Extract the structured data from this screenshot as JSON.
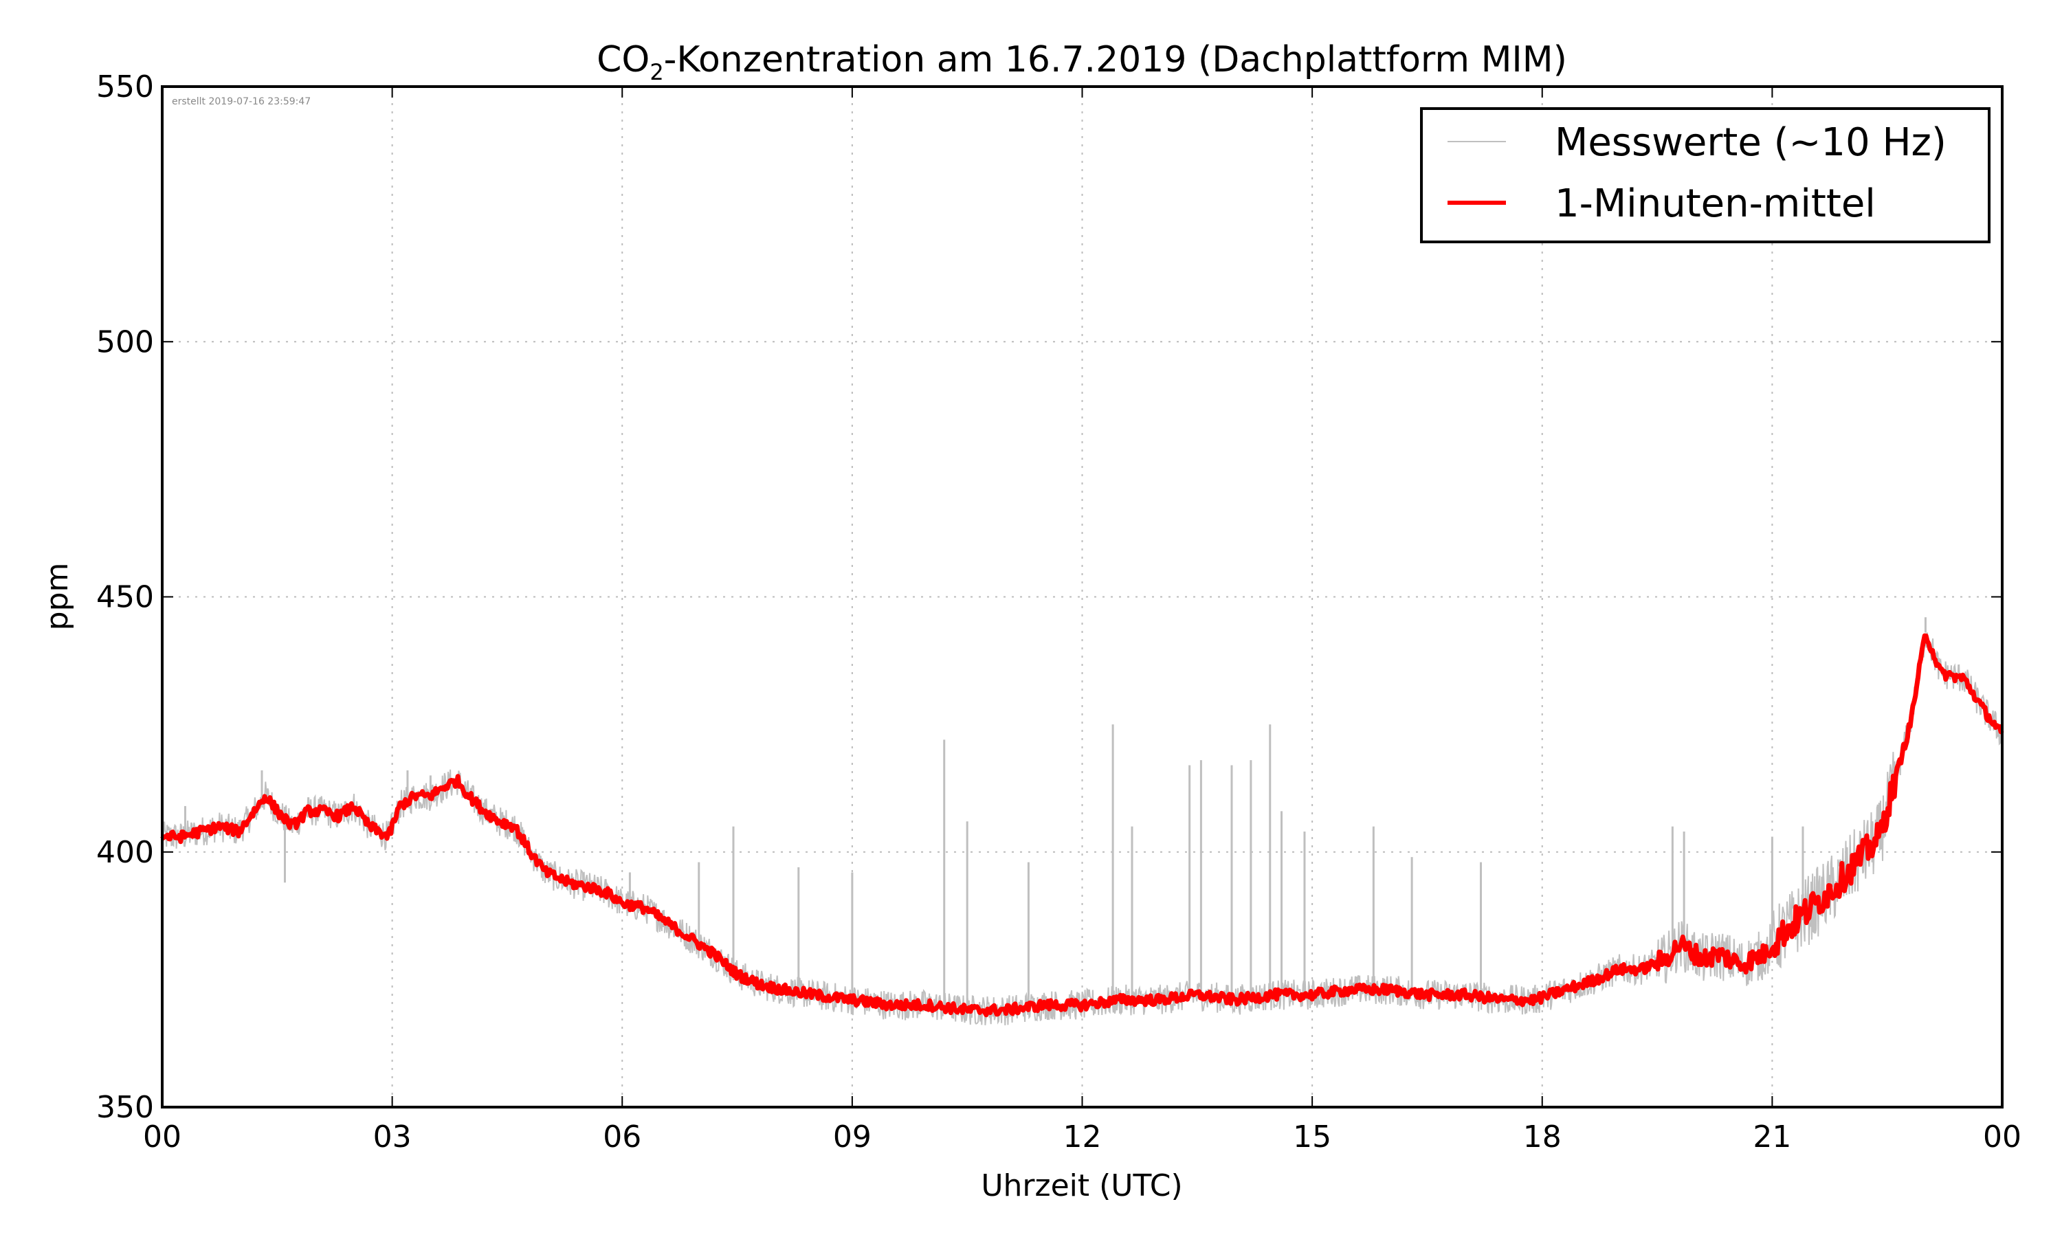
{
  "chart_data": {
    "type": "line",
    "title_main": "CO",
    "title_sub": "2",
    "title_rest": "-Konzentration am 16.7.2019 (Dachplattform MIM)",
    "title": "CO₂-Konzentration am 16.7.2019 (Dachplattform MIM)",
    "xlabel": "Uhrzeit (UTC)",
    "ylabel": "ppm",
    "xlim": [
      0,
      24
    ],
    "ylim": [
      350,
      550
    ],
    "xticks": [
      0,
      3,
      6,
      9,
      12,
      15,
      18,
      21,
      24
    ],
    "xtick_labels": [
      "00",
      "03",
      "06",
      "09",
      "12",
      "15",
      "18",
      "21",
      "00"
    ],
    "yticks": [
      350,
      400,
      450,
      500,
      550
    ],
    "ytick_labels": [
      "350",
      "400",
      "450",
      "500",
      "550"
    ],
    "grid": true,
    "legend_position": "top-right",
    "timestamp_note": "erstellt 2019-07-16 23:59:47",
    "series": [
      {
        "name": "Messwerte (~10 Hz)",
        "color": "#bfbfbf",
        "spikes": [
          {
            "x": 0.3,
            "y": 409
          },
          {
            "x": 1.3,
            "y": 416
          },
          {
            "x": 1.6,
            "y": 394
          },
          {
            "x": 3.2,
            "y": 416
          },
          {
            "x": 3.5,
            "y": 415
          },
          {
            "x": 6.1,
            "y": 396
          },
          {
            "x": 7.0,
            "y": 398
          },
          {
            "x": 7.45,
            "y": 405
          },
          {
            "x": 8.3,
            "y": 397
          },
          {
            "x": 9.0,
            "y": 396
          },
          {
            "x": 10.2,
            "y": 422
          },
          {
            "x": 10.5,
            "y": 406
          },
          {
            "x": 11.3,
            "y": 398
          },
          {
            "x": 12.4,
            "y": 425
          },
          {
            "x": 12.65,
            "y": 405
          },
          {
            "x": 13.4,
            "y": 417
          },
          {
            "x": 13.55,
            "y": 418
          },
          {
            "x": 13.95,
            "y": 417
          },
          {
            "x": 14.2,
            "y": 418
          },
          {
            "x": 14.45,
            "y": 425
          },
          {
            "x": 14.6,
            "y": 408
          },
          {
            "x": 14.9,
            "y": 404
          },
          {
            "x": 15.8,
            "y": 405
          },
          {
            "x": 16.3,
            "y": 399
          },
          {
            "x": 17.2,
            "y": 398
          },
          {
            "x": 19.7,
            "y": 405
          },
          {
            "x": 19.85,
            "y": 404
          },
          {
            "x": 21.0,
            "y": 403
          },
          {
            "x": 21.4,
            "y": 405
          },
          {
            "x": 23.0,
            "y": 446
          },
          {
            "x": 24.0,
            "y": 413
          }
        ],
        "noise_ppm": 3
      },
      {
        "name": "1-Minuten-mittel",
        "color": "#ff0000",
        "x": [
          0.0,
          0.25,
          0.5,
          0.75,
          1.0,
          1.2,
          1.35,
          1.5,
          1.7,
          1.9,
          2.1,
          2.3,
          2.5,
          2.7,
          2.95,
          3.1,
          3.3,
          3.5,
          3.7,
          3.85,
          4.0,
          4.2,
          4.4,
          4.6,
          4.8,
          5.0,
          5.3,
          5.6,
          5.8,
          6.0,
          6.3,
          6.6,
          6.9,
          7.2,
          7.5,
          7.8,
          8.1,
          8.5,
          9.0,
          9.5,
          10.0,
          10.5,
          11.0,
          11.5,
          12.0,
          12.5,
          13.0,
          13.5,
          14.0,
          14.5,
          15.0,
          15.5,
          16.0,
          16.5,
          17.0,
          17.5,
          17.9,
          18.3,
          18.7,
          19.0,
          19.3,
          19.6,
          19.8,
          20.1,
          20.3,
          20.6,
          20.9,
          21.2,
          21.5,
          21.8,
          22.1,
          22.4,
          22.6,
          22.8,
          23.0,
          23.2,
          23.5,
          23.75,
          24.0
        ],
        "values": [
          403,
          403,
          404,
          405,
          404,
          408,
          411,
          408,
          405,
          408,
          408,
          407,
          409,
          405,
          403,
          409,
          411,
          411,
          413,
          414,
          411,
          408,
          406,
          405,
          400,
          396,
          394,
          393,
          392,
          390,
          389,
          386,
          383,
          380,
          376,
          374,
          373,
          372,
          371,
          370,
          370,
          369,
          369,
          370,
          370,
          371,
          371,
          372,
          371,
          372,
          372,
          373,
          373,
          372,
          372,
          371,
          371,
          373,
          375,
          377,
          377,
          379,
          382,
          379,
          380,
          378,
          380,
          385,
          389,
          393,
          398,
          403,
          414,
          425,
          443,
          435,
          434,
          428,
          423
        ]
      }
    ]
  }
}
